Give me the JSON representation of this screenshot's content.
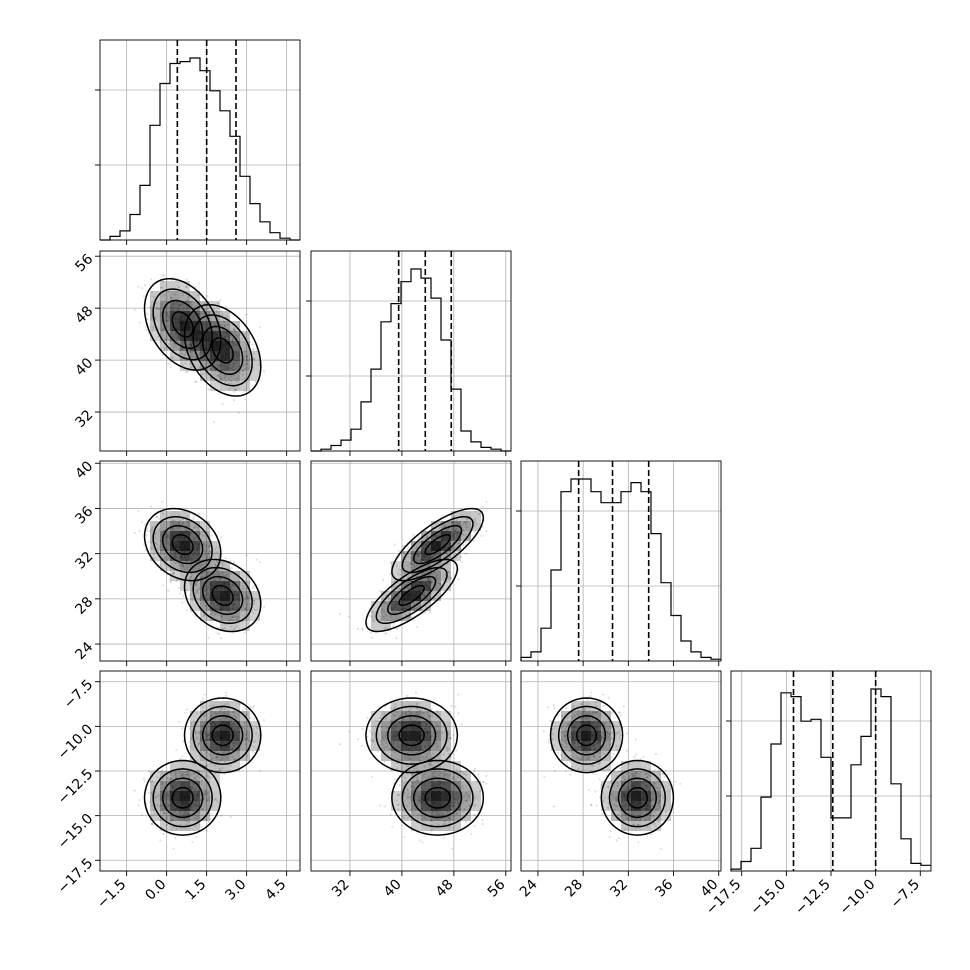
{
  "chart_data": {
    "type": "corner",
    "parameters": [
      {
        "range": [
          -2.5,
          5.0
        ],
        "ticks": [
          -1.5,
          0.0,
          1.5,
          3.0,
          4.5
        ],
        "tick_labels": [
          "−1.5",
          "0.0",
          "1.5",
          "3.0",
          "4.5"
        ]
      },
      {
        "range": [
          26,
          56.8
        ],
        "ticks": [
          32,
          40,
          48,
          56
        ],
        "tick_labels": [
          "32",
          "40",
          "48",
          "56"
        ]
      },
      {
        "range": [
          22.5,
          40.2
        ],
        "ticks": [
          24,
          28,
          32,
          36,
          40
        ],
        "tick_labels": [
          "24",
          "28",
          "32",
          "36",
          "40"
        ]
      },
      {
        "range": [
          -18.1,
          -6.9
        ],
        "ticks": [
          -17.5,
          -15.0,
          -12.5,
          -10.0,
          -7.5
        ],
        "tick_labels": [
          "−17.5",
          "−15.0",
          "−12.5",
          "−10.0",
          "−7.5"
        ]
      }
    ],
    "quantiles": [
      [
        0.4,
        1.5,
        2.6
      ],
      [
        39.5,
        43.6,
        47.6
      ],
      [
        27.6,
        30.6,
        33.8
      ],
      [
        -14.6,
        -12.4,
        -10.0
      ]
    ],
    "histograms": [
      {
        "edges_start": -2.5,
        "bin_width": 0.375,
        "counts": [
          0,
          2,
          5,
          14,
          30,
          63,
          86,
          97,
          98,
          100,
          93,
          82,
          71,
          57,
          35,
          20,
          10,
          4,
          1,
          0
        ]
      },
      {
        "edges_start": 26,
        "bin_width": 1.54,
        "counts": [
          0,
          1,
          3,
          6,
          12,
          27,
          45,
          71,
          81,
          93,
          100,
          95,
          84,
          61,
          34,
          11,
          5,
          2,
          1,
          0
        ]
      },
      {
        "edges_start": 22.5,
        "bin_width": 0.885,
        "counts": [
          2,
          5,
          18,
          50,
          93,
          100,
          100,
          93,
          87,
          87,
          93,
          98,
          93,
          70,
          43,
          25,
          11,
          5,
          2,
          1
        ]
      },
      {
        "edges_start": -18.1,
        "bin_width": 0.56,
        "counts": [
          1,
          5,
          12,
          39,
          67,
          94,
          92,
          79,
          80,
          60,
          28,
          28,
          56,
          71,
          96,
          92,
          46,
          17,
          4,
          3
        ]
      }
    ],
    "components": [
      {
        "weight": 0.5,
        "mean": [
          0.6,
          45.5,
          32.8,
          -14.0
        ],
        "sd": [
          0.65,
          3.2,
          1.45,
          0.95
        ],
        "corr_12": -0.35,
        "corr_23": 0.75
      },
      {
        "weight": 0.5,
        "mean": [
          2.1,
          41.5,
          28.3,
          -10.5
        ],
        "sd": [
          0.65,
          3.2,
          1.45,
          0.95
        ],
        "corr_12": -0.35,
        "corr_23": 0.75
      }
    ],
    "scatter_sample_size": 700,
    "grid": true,
    "colors": {
      "lines": "#000000",
      "points": "#000000",
      "grid": "#b0b0b0"
    }
  }
}
